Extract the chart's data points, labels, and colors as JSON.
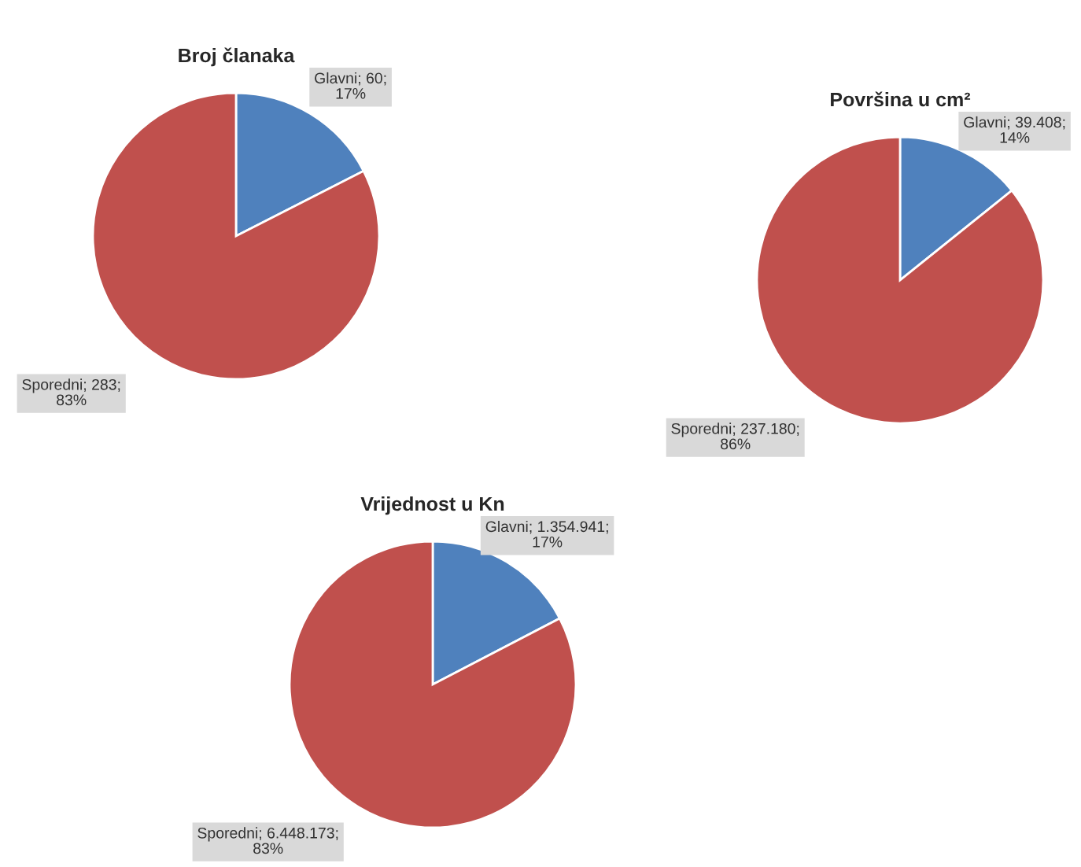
{
  "chart_data": [
    {
      "type": "pie",
      "title": "Broj članaka",
      "categories": [
        "Glavni",
        "Sporedni"
      ],
      "values": [
        60,
        283
      ],
      "colors": [
        "#4f81bd",
        "#c0504d"
      ],
      "value_labels": [
        "60; 17%",
        "283; 83%"
      ]
    },
    {
      "type": "pie",
      "title": "Površina u cm²",
      "categories": [
        "Glavni",
        "Sporedni"
      ],
      "values": [
        39408,
        237180
      ],
      "colors": [
        "#4f81bd",
        "#c0504d"
      ],
      "value_labels": [
        "39.408; 14%",
        "237.180; 86%"
      ]
    },
    {
      "type": "pie",
      "title": "Vrijednost u Kn",
      "categories": [
        "Glavni",
        "Sporedni"
      ],
      "values": [
        1354941,
        6448173
      ],
      "colors": [
        "#4f81bd",
        "#c0504d"
      ],
      "value_labels": [
        "1.354.941; 17%",
        "6.448.173; 83%"
      ]
    }
  ]
}
